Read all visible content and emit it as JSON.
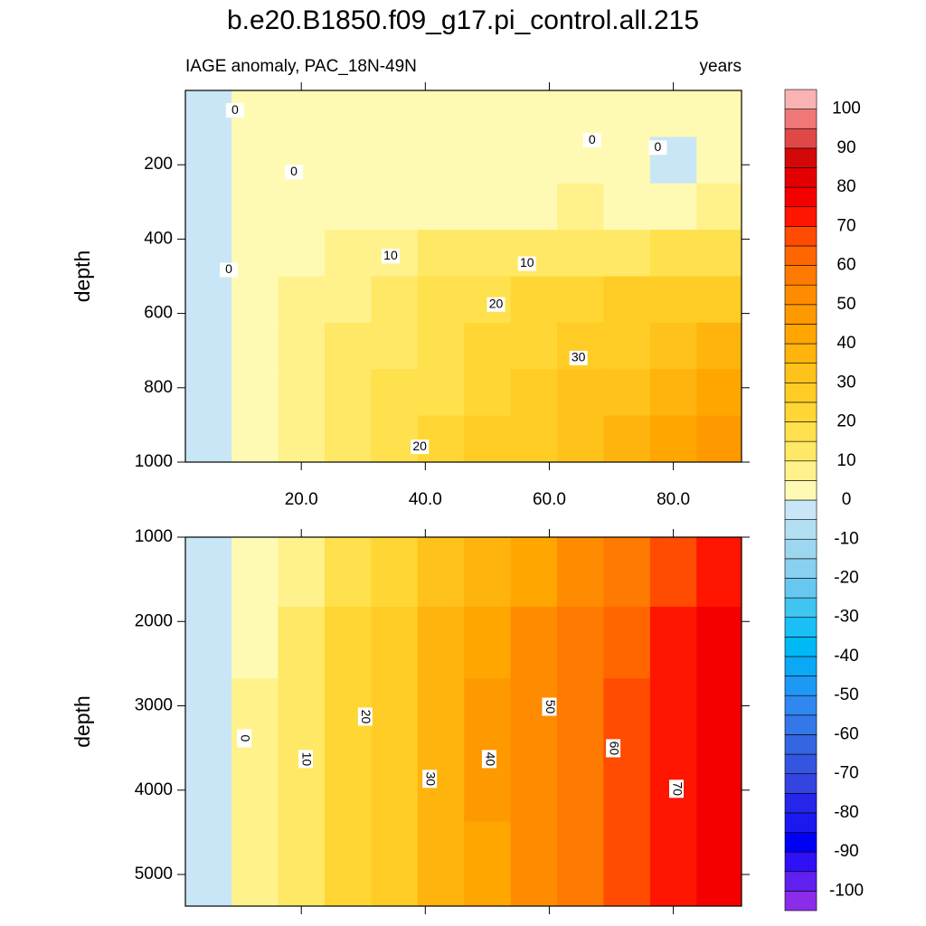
{
  "chart_data": {
    "type": "contour",
    "title": "b.e20.B1850.f09_g17.pi_control.all.215",
    "subtitle_left": "IAGE anomaly, PAC_18N-49N",
    "subtitle_right": "years",
    "panels": [
      {
        "ylabel": "depth",
        "xlim": [
          1.3,
          91
        ],
        "ylim": [
          0,
          1000
        ],
        "xticks": [
          {
            "value": 20,
            "label": "20.0"
          },
          {
            "value": 40,
            "label": "40.0"
          },
          {
            "value": 60,
            "label": "60.0"
          },
          {
            "value": 80,
            "label": "80.0"
          }
        ],
        "show_xtick_labels": true,
        "yticks": [
          200,
          400,
          600,
          800,
          1000
        ],
        "x": [
          5,
          12.5,
          20,
          27.5,
          35,
          42.5,
          50,
          57.5,
          65,
          72.5,
          80,
          87.5
        ],
        "y": [
          62.5,
          187.5,
          312.5,
          437.5,
          562.5,
          687.5,
          812.5,
          937.5
        ],
        "values": [
          [
            -1,
            1,
            1,
            1,
            2,
            1,
            1,
            1,
            1,
            2,
            1,
            1
          ],
          [
            -1,
            1,
            2,
            2,
            2,
            2,
            1,
            2,
            2,
            1,
            -1,
            1
          ],
          [
            -1,
            1,
            2,
            2,
            3,
            4,
            4,
            4,
            5,
            4,
            4,
            5
          ],
          [
            -2,
            1,
            3,
            5,
            8,
            10,
            11,
            12,
            13,
            14,
            15,
            17
          ],
          [
            -3,
            1,
            5,
            8,
            12,
            15,
            18,
            20,
            23,
            25,
            27,
            29
          ],
          [
            -3,
            2,
            6,
            10,
            14,
            17,
            20,
            23,
            27,
            29,
            32,
            35
          ],
          [
            -3,
            2,
            6,
            11,
            16,
            19,
            23,
            26,
            30,
            33,
            36,
            40
          ],
          [
            -3,
            2,
            7,
            12,
            17,
            21,
            25,
            28,
            32,
            37,
            41,
            45
          ]
        ],
        "contour_labels": {
          "x": [
            9.3,
            18.8,
            66.9,
            77.5,
            8.3,
            34.4,
            56.4,
            51.4,
            64.7,
            39.1
          ],
          "y": [
            54,
            220,
            134,
            154,
            483,
            446,
            466,
            576,
            720,
            959
          ],
          "values": [
            0,
            0,
            0,
            0,
            0,
            10,
            10,
            20,
            30,
            20
          ]
        }
      },
      {
        "ylabel": "depth",
        "xlim": [
          1.3,
          91
        ],
        "ylim": [
          1000,
          5375
        ],
        "xticks": [
          20,
          40,
          60,
          80
        ],
        "show_xtick_labels": false,
        "yticks": [
          1000,
          2000,
          3000,
          4000,
          5000
        ],
        "x": [
          5,
          12.5,
          20,
          27.5,
          35,
          42.5,
          50,
          57.5,
          65,
          72.5,
          80,
          87.5
        ],
        "y": [
          1400,
          2250,
          3100,
          3950,
          4800
        ],
        "values": [
          [
            -3,
            3,
            9,
            16,
            22,
            30,
            37,
            44,
            51,
            59,
            66,
            73
          ],
          [
            -3,
            4,
            12,
            20,
            27,
            35,
            42,
            50,
            57,
            64,
            70,
            77
          ],
          [
            -3,
            5,
            13,
            21,
            29,
            37,
            45,
            52,
            59,
            66,
            72,
            76
          ],
          [
            -3,
            5,
            13,
            21,
            29,
            37,
            45,
            52,
            59,
            66,
            72,
            76
          ],
          [
            -3,
            5,
            13,
            21,
            29,
            37,
            44,
            51,
            58,
            65,
            71,
            75
          ]
        ],
        "contour_labels": {
          "x": [
            10.8,
            20.7,
            30.3,
            40.7,
            50.3,
            60,
            70.3,
            80.5
          ],
          "y": [
            3385,
            3631,
            3128,
            3866,
            3631,
            3011,
            3503,
            3984
          ],
          "values": [
            0,
            10,
            20,
            30,
            40,
            50,
            60,
            70
          ]
        }
      }
    ],
    "colorbar": {
      "levels": [
        -100,
        -95,
        -90,
        -85,
        -80,
        -75,
        -70,
        -65,
        -60,
        -55,
        -50,
        -45,
        -40,
        -35,
        -30,
        -25,
        -20,
        -15,
        -10,
        -5,
        0,
        5,
        10,
        15,
        20,
        25,
        30,
        35,
        40,
        45,
        50,
        55,
        60,
        65,
        70,
        75,
        80,
        85,
        90,
        95,
        100
      ],
      "colors": [
        "#8a2ce8",
        "#6020f0",
        "#3010f5",
        "#0000f5",
        "#1a1af0",
        "#2626e8",
        "#3344e0",
        "#3355e0",
        "#3366e0",
        "#3377e8",
        "#2e88f0",
        "#1e98f5",
        "#0aa8f5",
        "#00b8f5",
        "#1ac0f5",
        "#40c4f0",
        "#66c8f0",
        "#87d0f0",
        "#9dd6ef",
        "#b2dff2",
        "#c8e6f5",
        "#fffab3",
        "#fff28c",
        "#ffe866",
        "#ffe04d",
        "#ffd633",
        "#ffcc26",
        "#ffc21a",
        "#ffb30d",
        "#ffa600",
        "#ff9900",
        "#ff8c00",
        "#ff7a00",
        "#ff6600",
        "#ff4c00",
        "#ff1500",
        "#f50000",
        "#e40000",
        "#d40808",
        "#e04848",
        "#f07777",
        "#f9b3b3"
      ],
      "ticks": [
        100,
        90,
        80,
        70,
        60,
        50,
        40,
        30,
        20,
        10,
        0,
        -10,
        -20,
        -30,
        -40,
        -50,
        -60,
        -70,
        -80,
        -90,
        -100
      ]
    }
  }
}
